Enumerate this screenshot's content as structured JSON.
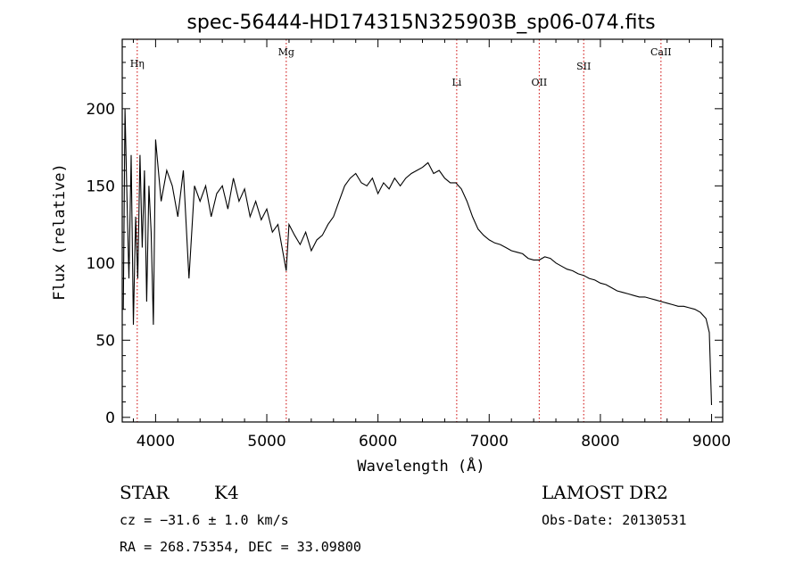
{
  "chart_data": {
    "type": "line",
    "title": "spec-56444-HD174315N325903B_sp06-074.fits",
    "xlabel": "Wavelength (Å)",
    "ylabel": "Flux (relative)",
    "xlim": [
      3700,
      9100
    ],
    "ylim": [
      -3,
      245
    ],
    "xticks": [
      4000,
      5000,
      6000,
      7000,
      8000,
      9000
    ],
    "yticks": [
      0,
      50,
      100,
      150,
      200
    ],
    "grid": false,
    "line_color": "#000000",
    "marker_color": "#cc0000",
    "lines": [
      {
        "label": "Hη",
        "wavelength": 3835
      },
      {
        "label": "Mg",
        "wavelength": 5175
      },
      {
        "label": "Li",
        "wavelength": 6708
      },
      {
        "label": "OII",
        "wavelength": 7450
      },
      {
        "label": "SII",
        "wavelength": 7850
      },
      {
        "label": "CaII",
        "wavelength": 8545
      }
    ],
    "series": [
      {
        "x": [
          3710,
          3725,
          3740,
          3760,
          3780,
          3800,
          3820,
          3840,
          3860,
          3880,
          3900,
          3920,
          3940,
          3960,
          3980,
          4000,
          4050,
          4100,
          4150,
          4200,
          4250,
          4300,
          4350,
          4400,
          4450,
          4500,
          4550,
          4600,
          4650,
          4700,
          4750,
          4800,
          4850,
          4900,
          4950,
          5000,
          5050,
          5100,
          5150,
          5175,
          5200,
          5250,
          5300,
          5350,
          5400,
          5450,
          5500,
          5550,
          5600,
          5650,
          5700,
          5750,
          5800,
          5850,
          5900,
          5950,
          6000,
          6050,
          6100,
          6150,
          6200,
          6250,
          6300,
          6350,
          6400,
          6450,
          6500,
          6550,
          6600,
          6650,
          6700,
          6750,
          6800,
          6850,
          6900,
          6950,
          7000,
          7050,
          7100,
          7150,
          7200,
          7250,
          7300,
          7350,
          7400,
          7450,
          7500,
          7550,
          7600,
          7650,
          7700,
          7750,
          7800,
          7850,
          7900,
          7950,
          8000,
          8050,
          8100,
          8150,
          8200,
          8250,
          8300,
          8350,
          8400,
          8450,
          8500,
          8550,
          8600,
          8650,
          8700,
          8750,
          8800,
          8850,
          8900,
          8950,
          8980,
          9000
        ],
        "y": [
          70,
          200,
          150,
          90,
          170,
          60,
          130,
          90,
          170,
          110,
          160,
          75,
          150,
          120,
          60,
          180,
          140,
          160,
          150,
          130,
          160,
          90,
          150,
          140,
          150,
          130,
          145,
          150,
          135,
          155,
          140,
          148,
          130,
          140,
          128,
          135,
          120,
          125,
          105,
          95,
          125,
          118,
          112,
          120,
          108,
          115,
          118,
          125,
          130,
          140,
          150,
          155,
          158,
          152,
          150,
          155,
          145,
          152,
          148,
          155,
          150,
          155,
          158,
          160,
          162,
          165,
          158,
          160,
          155,
          152,
          152,
          148,
          140,
          130,
          122,
          118,
          115,
          113,
          112,
          110,
          108,
          107,
          106,
          103,
          102,
          102,
          104,
          103,
          100,
          98,
          96,
          95,
          93,
          92,
          90,
          89,
          87,
          86,
          84,
          82,
          81,
          80,
          79,
          78,
          78,
          77,
          76,
          75,
          74,
          73,
          72,
          72,
          71,
          70,
          68,
          64,
          55,
          8
        ]
      }
    ]
  },
  "footer": {
    "object_type": "STAR",
    "subclass": "K4",
    "survey": "LAMOST DR2",
    "redshift": "cz = −31.6 ± 1.0 km/s",
    "obs_date": "Obs-Date: 20130531",
    "coords": "RA = 268.75354, DEC =  33.09800"
  }
}
